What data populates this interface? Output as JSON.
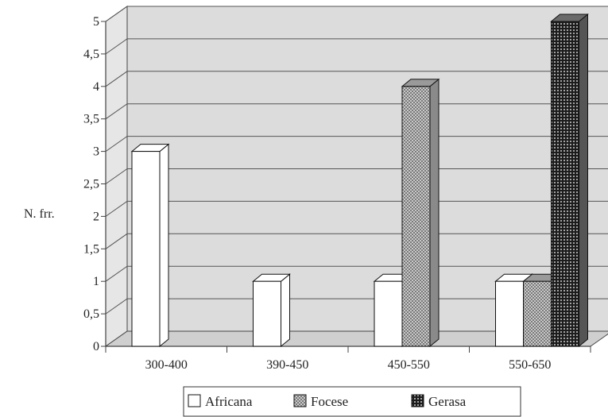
{
  "chart_data": {
    "type": "bar",
    "title": "",
    "xlabel": "",
    "ylabel": "N. frr.",
    "categories": [
      "300-400",
      "390-450",
      "450-550",
      "550-650"
    ],
    "series": [
      {
        "name": "Africana",
        "values": [
          3,
          1,
          1,
          1
        ],
        "pattern": "plain"
      },
      {
        "name": "Focese",
        "values": [
          0,
          0,
          4,
          1
        ],
        "pattern": "checker"
      },
      {
        "name": "Gerasa",
        "values": [
          0,
          0,
          0,
          5
        ],
        "pattern": "dots"
      }
    ],
    "ylim": [
      0,
      5
    ],
    "yticks": [
      "0",
      "0,5",
      "1",
      "1,5",
      "2",
      "2,5",
      "3",
      "3,5",
      "4",
      "4,5",
      "5"
    ],
    "grid": true,
    "legend_position": "bottom",
    "three_d": true
  },
  "colors": {
    "wall": "#dcdcdc",
    "grid": "#555555",
    "axis": "#444444",
    "bar_edge": "#111111",
    "africana": "#ffffff",
    "focese_side": "#8a8a8a",
    "gerasa_side": "#555555"
  }
}
